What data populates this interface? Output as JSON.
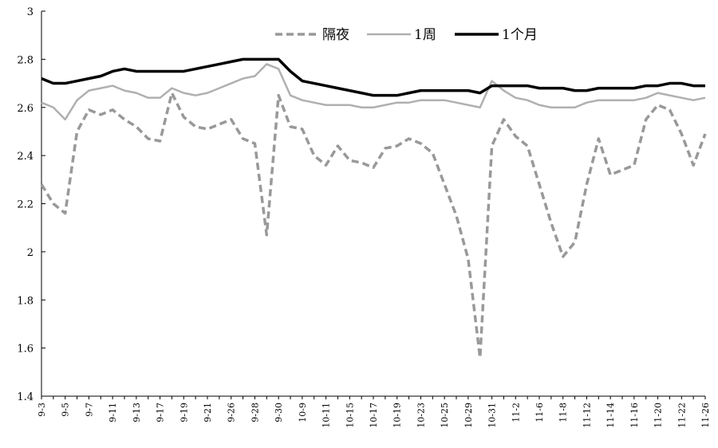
{
  "chart_data": {
    "type": "line",
    "title": "",
    "xlabel": "",
    "ylabel": "",
    "ylim": [
      1.4,
      3.0
    ],
    "yticks": [
      "1.4",
      "1.6",
      "1.8",
      "2",
      "2.2",
      "2.4",
      "2.6",
      "2.8",
      "3"
    ],
    "ytick_values": [
      1.4,
      1.6,
      1.8,
      2.0,
      2.2,
      2.4,
      2.6,
      2.8,
      3.0
    ],
    "grid": false,
    "legend_position": "top-center",
    "categories": [
      "9-3",
      "9-5",
      "9-7",
      "9-11",
      "9-13",
      "9-17",
      "9-19",
      "9-21",
      "9-26",
      "9-28",
      "9-30",
      "10-9",
      "10-11",
      "10-15",
      "10-17",
      "10-19",
      "10-23",
      "10-25",
      "10-29",
      "10-31",
      "11-2",
      "11-6",
      "11-8",
      "11-12",
      "11-14",
      "11-16",
      "11-20",
      "11-22",
      "11-26"
    ],
    "x": [
      0,
      2,
      4,
      6,
      8,
      10,
      12,
      14,
      16,
      18,
      20,
      22,
      24,
      26,
      28,
      30,
      32,
      34,
      36,
      38,
      40,
      42,
      44,
      46,
      48,
      50,
      52,
      54,
      56
    ],
    "x_max": 56,
    "series": [
      {
        "name": "隔夜",
        "style": "dashed",
        "color": "#999999",
        "x": [
          0,
          1,
          2,
          3,
          4,
          5,
          6,
          7,
          8,
          9,
          10,
          11,
          12,
          13,
          14,
          15,
          16,
          17,
          18,
          19,
          20,
          21,
          22,
          23,
          24,
          25,
          26,
          27,
          28,
          29,
          30,
          31,
          32,
          33,
          34,
          35,
          36,
          37,
          38,
          39,
          40,
          41,
          42,
          43,
          44,
          45,
          46,
          47,
          48,
          49,
          50,
          51,
          52,
          53,
          54,
          55,
          56
        ],
        "values": [
          2.28,
          2.2,
          2.16,
          2.5,
          2.59,
          2.57,
          2.59,
          2.55,
          2.52,
          2.47,
          2.46,
          2.66,
          2.56,
          2.52,
          2.51,
          2.53,
          2.55,
          2.47,
          2.45,
          2.07,
          2.65,
          2.52,
          2.51,
          2.4,
          2.36,
          2.44,
          2.38,
          2.37,
          2.35,
          2.43,
          2.44,
          2.47,
          2.45,
          2.41,
          2.28,
          2.15,
          1.97,
          1.56,
          2.44,
          2.55,
          2.48,
          2.44,
          2.28,
          2.12,
          1.98,
          2.04,
          2.28,
          2.47,
          2.32,
          2.34,
          2.36,
          2.55,
          2.61,
          2.59,
          2.49,
          2.36,
          2.49
        ]
      },
      {
        "name": "1周",
        "style": "solid",
        "color": "#b0b0b0",
        "x": [
          0,
          1,
          2,
          3,
          4,
          5,
          6,
          7,
          8,
          9,
          10,
          11,
          12,
          13,
          14,
          15,
          16,
          17,
          18,
          19,
          20,
          21,
          22,
          23,
          24,
          25,
          26,
          27,
          28,
          29,
          30,
          31,
          32,
          33,
          34,
          35,
          36,
          37,
          38,
          39,
          40,
          41,
          42,
          43,
          44,
          45,
          46,
          47,
          48,
          49,
          50,
          51,
          52,
          53,
          54,
          55,
          56
        ],
        "values": [
          2.62,
          2.6,
          2.55,
          2.63,
          2.67,
          2.68,
          2.69,
          2.67,
          2.66,
          2.64,
          2.64,
          2.68,
          2.66,
          2.65,
          2.66,
          2.68,
          2.7,
          2.72,
          2.73,
          2.78,
          2.76,
          2.65,
          2.63,
          2.62,
          2.61,
          2.61,
          2.61,
          2.6,
          2.6,
          2.61,
          2.62,
          2.62,
          2.63,
          2.63,
          2.63,
          2.62,
          2.61,
          2.6,
          2.71,
          2.67,
          2.64,
          2.63,
          2.61,
          2.6,
          2.6,
          2.6,
          2.62,
          2.63,
          2.63,
          2.63,
          2.63,
          2.64,
          2.66,
          2.65,
          2.64,
          2.63,
          2.64
        ]
      },
      {
        "name": "1个月",
        "style": "solid",
        "color": "#000000",
        "x": [
          0,
          1,
          2,
          3,
          4,
          5,
          6,
          7,
          8,
          9,
          10,
          11,
          12,
          13,
          14,
          15,
          16,
          17,
          18,
          19,
          20,
          21,
          22,
          23,
          24,
          25,
          26,
          27,
          28,
          29,
          30,
          31,
          32,
          33,
          34,
          35,
          36,
          37,
          38,
          39,
          40,
          41,
          42,
          43,
          44,
          45,
          46,
          47,
          48,
          49,
          50,
          51,
          52,
          53,
          54,
          55,
          56
        ],
        "values": [
          2.72,
          2.7,
          2.7,
          2.71,
          2.72,
          2.73,
          2.75,
          2.76,
          2.75,
          2.75,
          2.75,
          2.75,
          2.75,
          2.76,
          2.77,
          2.78,
          2.79,
          2.8,
          2.8,
          2.8,
          2.8,
          2.75,
          2.71,
          2.7,
          2.69,
          2.68,
          2.67,
          2.66,
          2.65,
          2.65,
          2.65,
          2.66,
          2.67,
          2.67,
          2.67,
          2.67,
          2.67,
          2.66,
          2.69,
          2.69,
          2.69,
          2.69,
          2.68,
          2.68,
          2.68,
          2.67,
          2.67,
          2.68,
          2.68,
          2.68,
          2.68,
          2.69,
          2.69,
          2.7,
          2.7,
          2.69,
          2.69
        ]
      }
    ]
  }
}
